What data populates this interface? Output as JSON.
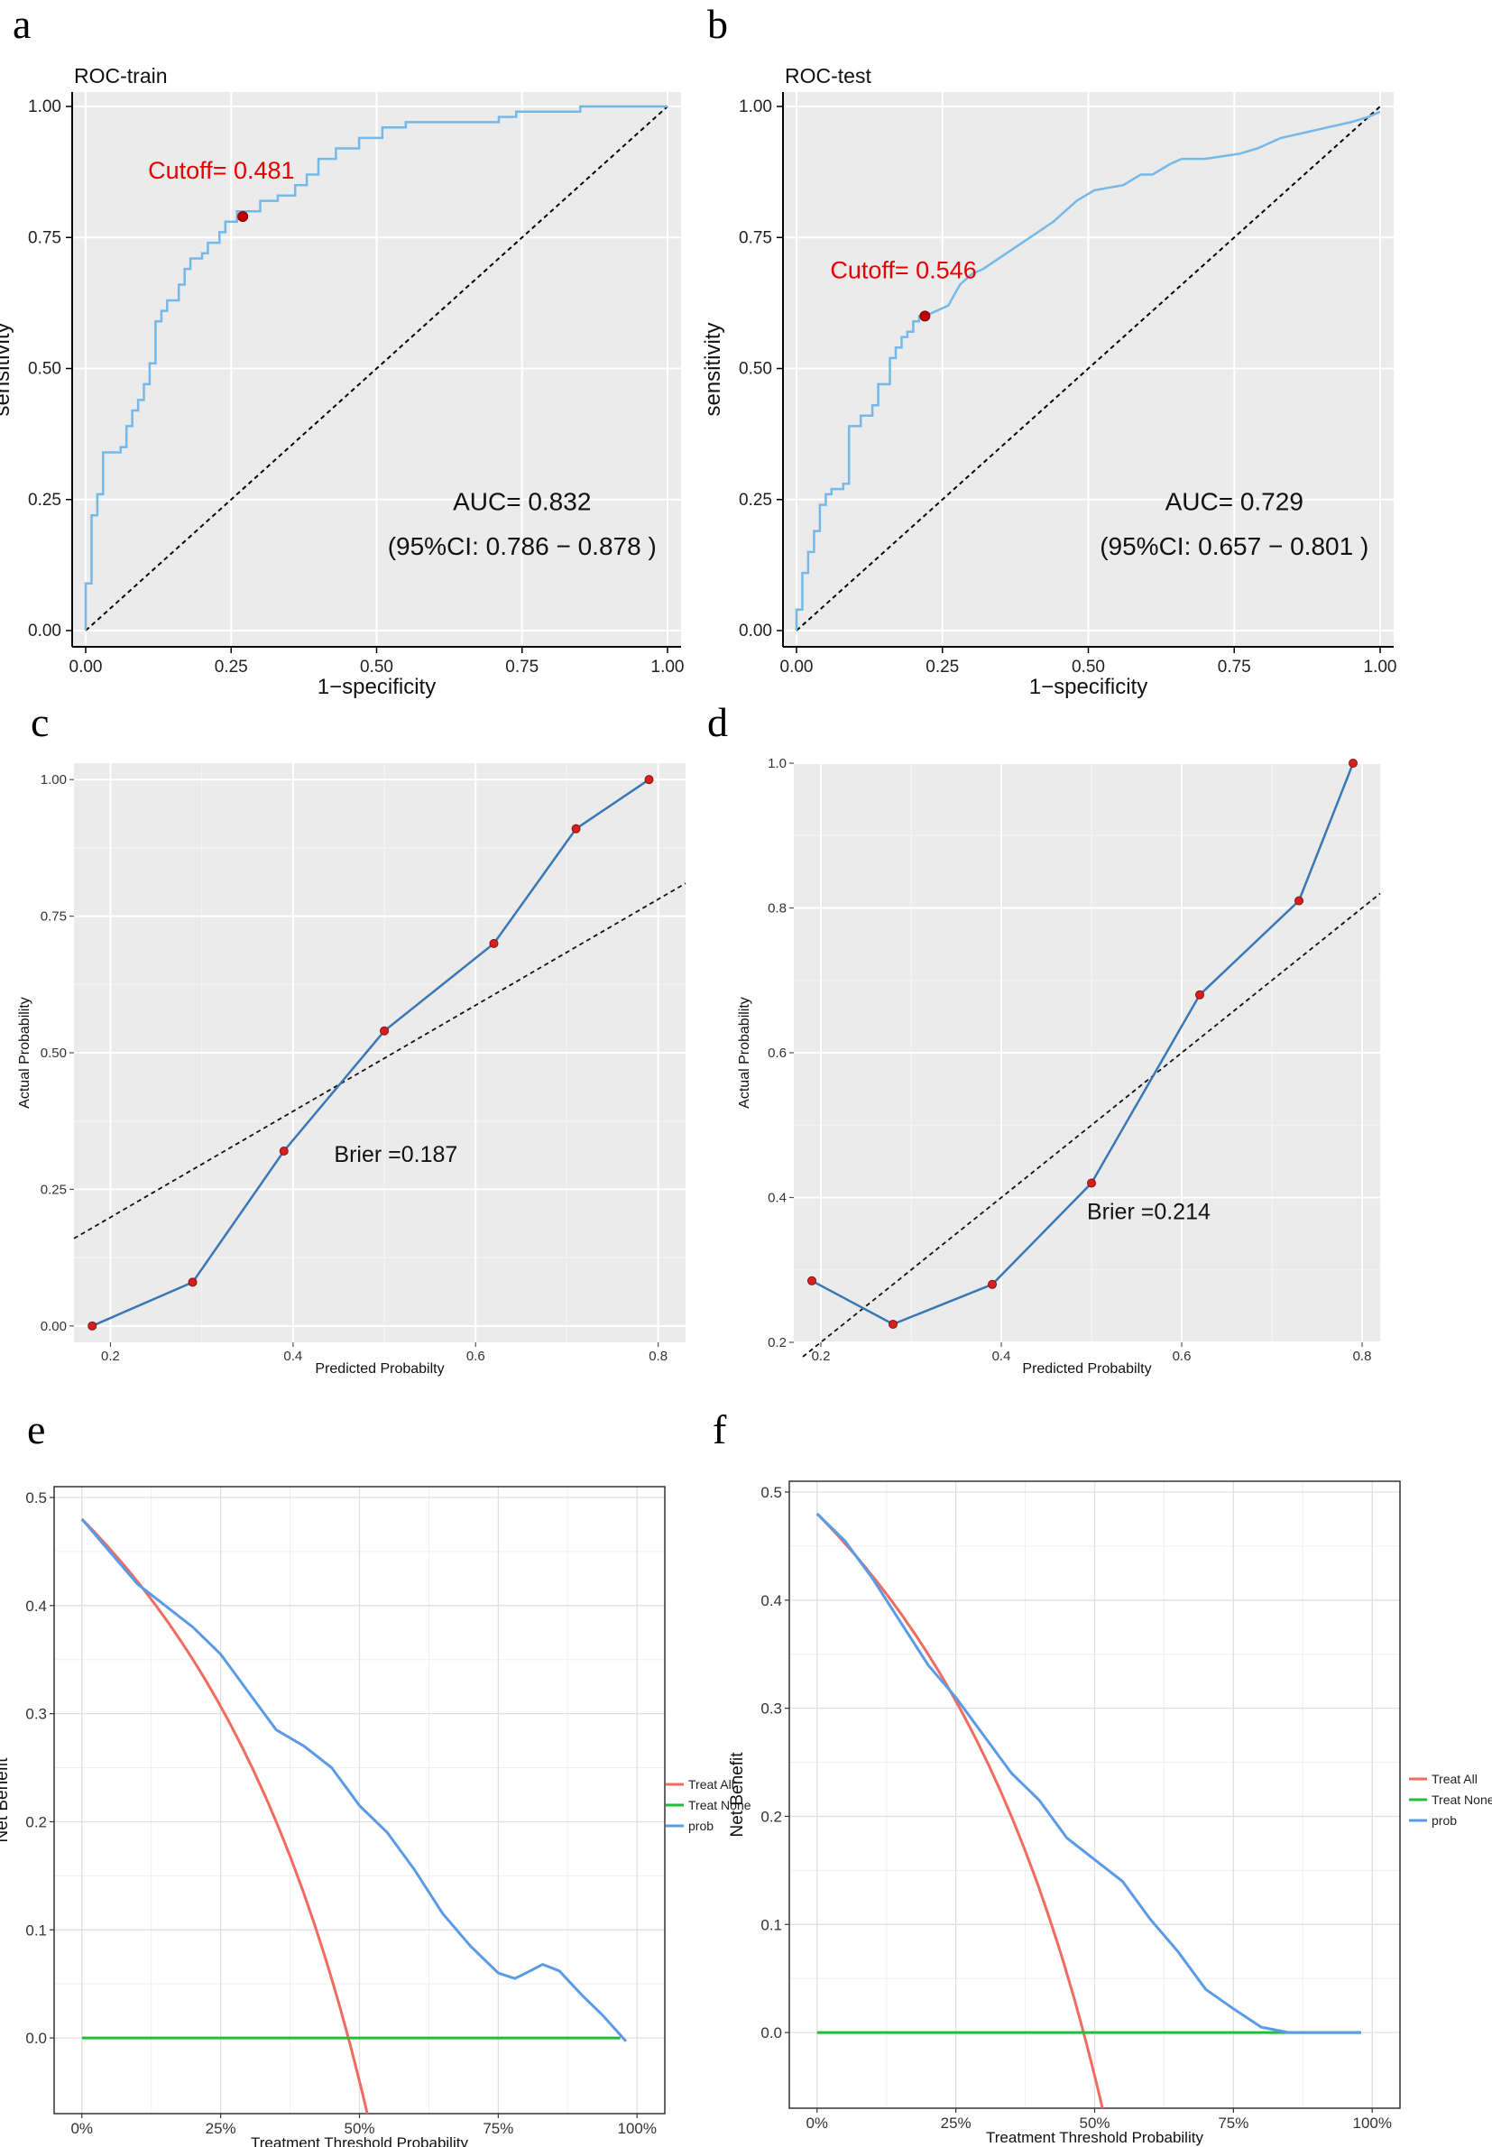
{
  "panel_labels": [
    "a",
    "b",
    "c",
    "d",
    "e",
    "f"
  ],
  "colors": {
    "roc_curve": "#74b9e8",
    "cutoff": "#e60000",
    "cutoff_point": "#c00000",
    "calib_line": "#3a78b5",
    "calib_point": "#d62020",
    "treat_all": "#f26b5f",
    "treat_none": "#1fbf3a",
    "prob": "#5b9be6",
    "panel_bg": "#ebebeb"
  },
  "chart_data": [
    {
      "id": "a",
      "type": "line",
      "title": "ROC-train",
      "xlabel": "1−specificity",
      "ylabel": "sensitivity",
      "xlim": [
        0,
        1
      ],
      "ylim": [
        0,
        1
      ],
      "xticks": [
        "0.00",
        "0.25",
        "0.50",
        "0.75",
        "1.00"
      ],
      "yticks": [
        "0.00",
        "0.25",
        "0.50",
        "0.75",
        "1.00"
      ],
      "grid": true,
      "cutoff_label": "Cutoff= 0.481",
      "cutoff_point": [
        0.27,
        0.79
      ],
      "auc_label": "AUC= 0.832",
      "ci_label": "(95%CI: 0.786 − 0.878 )",
      "series": [
        {
          "name": "ROC",
          "x": [
            0,
            0,
            0.01,
            0.01,
            0.02,
            0.02,
            0.03,
            0.03,
            0.06,
            0.06,
            0.07,
            0.07,
            0.08,
            0.08,
            0.09,
            0.09,
            0.1,
            0.1,
            0.11,
            0.11,
            0.12,
            0.12,
            0.13,
            0.13,
            0.14,
            0.14,
            0.16,
            0.16,
            0.17,
            0.17,
            0.18,
            0.18,
            0.2,
            0.2,
            0.21,
            0.21,
            0.23,
            0.23,
            0.24,
            0.24,
            0.26,
            0.26,
            0.3,
            0.3,
            0.33,
            0.33,
            0.36,
            0.36,
            0.38,
            0.38,
            0.4,
            0.4,
            0.43,
            0.43,
            0.47,
            0.47,
            0.51,
            0.51,
            0.55,
            0.55,
            0.63,
            0.63,
            0.71,
            0.71,
            0.74,
            0.74,
            0.77,
            0.77,
            0.85,
            0.85,
            0.88,
            0.88,
            0.93,
            0.93,
            1.0
          ],
          "y": [
            0,
            0.09,
            0.09,
            0.22,
            0.22,
            0.26,
            0.26,
            0.34,
            0.34,
            0.35,
            0.35,
            0.39,
            0.39,
            0.42,
            0.42,
            0.44,
            0.44,
            0.47,
            0.47,
            0.51,
            0.51,
            0.59,
            0.59,
            0.61,
            0.61,
            0.63,
            0.63,
            0.66,
            0.66,
            0.69,
            0.69,
            0.71,
            0.71,
            0.72,
            0.72,
            0.74,
            0.74,
            0.76,
            0.76,
            0.78,
            0.78,
            0.8,
            0.8,
            0.82,
            0.82,
            0.83,
            0.83,
            0.85,
            0.85,
            0.87,
            0.87,
            0.9,
            0.9,
            0.92,
            0.92,
            0.94,
            0.94,
            0.96,
            0.96,
            0.97,
            0.97,
            0.97,
            0.97,
            0.98,
            0.98,
            0.99,
            0.99,
            0.99,
            0.99,
            1.0,
            1.0,
            1.0,
            1.0,
            1.0,
            1.0
          ]
        },
        {
          "name": "reference",
          "x": [
            0,
            1
          ],
          "y": [
            0,
            1
          ]
        }
      ]
    },
    {
      "id": "b",
      "type": "line",
      "title": "ROC-test",
      "xlabel": "1−specificity",
      "ylabel": "sensitivity",
      "xlim": [
        0,
        1
      ],
      "ylim": [
        0,
        1
      ],
      "xticks": [
        "0.00",
        "0.25",
        "0.50",
        "0.75",
        "1.00"
      ],
      "yticks": [
        "0.00",
        "0.25",
        "0.50",
        "0.75",
        "1.00"
      ],
      "grid": true,
      "cutoff_label": "Cutoff= 0.546",
      "cutoff_point": [
        0.22,
        0.6
      ],
      "auc_label": "AUC= 0.729",
      "ci_label": "(95%CI: 0.657 − 0.801 )",
      "series": [
        {
          "name": "ROC",
          "x": [
            0,
            0,
            0.01,
            0.01,
            0.02,
            0.02,
            0.03,
            0.03,
            0.04,
            0.04,
            0.05,
            0.05,
            0.06,
            0.06,
            0.08,
            0.08,
            0.09,
            0.09,
            0.11,
            0.11,
            0.13,
            0.13,
            0.14,
            0.14,
            0.16,
            0.16,
            0.17,
            0.17,
            0.18,
            0.18,
            0.19,
            0.19,
            0.2,
            0.2,
            0.21,
            0.21,
            0.22,
            0.26,
            0.28,
            0.3,
            0.32,
            0.36,
            0.4,
            0.44,
            0.48,
            0.51,
            0.56,
            0.59,
            0.61,
            0.64,
            0.66,
            0.7,
            0.76,
            0.79,
            0.83,
            0.87,
            0.91,
            0.95,
            0.98,
            1.0
          ],
          "y": [
            0,
            0.04,
            0.04,
            0.11,
            0.11,
            0.15,
            0.15,
            0.19,
            0.19,
            0.24,
            0.24,
            0.26,
            0.26,
            0.27,
            0.27,
            0.28,
            0.28,
            0.39,
            0.39,
            0.41,
            0.41,
            0.43,
            0.43,
            0.47,
            0.47,
            0.52,
            0.52,
            0.54,
            0.54,
            0.56,
            0.56,
            0.57,
            0.57,
            0.59,
            0.59,
            0.6,
            0.6,
            0.62,
            0.66,
            0.68,
            0.69,
            0.72,
            0.75,
            0.78,
            0.82,
            0.84,
            0.85,
            0.87,
            0.87,
            0.89,
            0.9,
            0.9,
            0.91,
            0.92,
            0.94,
            0.95,
            0.96,
            0.97,
            0.98,
            0.99
          ]
        },
        {
          "name": "reference",
          "x": [
            0,
            1
          ],
          "y": [
            0,
            1
          ]
        }
      ]
    },
    {
      "id": "c",
      "type": "line",
      "xlabel": "Predicted Probabilty",
      "ylabel": "Actual Probability",
      "xlim": [
        0.16,
        0.83
      ],
      "ylim": [
        -0.03,
        1.03
      ],
      "xticks": [
        {
          "v": 0.2,
          "t": "0.2"
        },
        {
          "v": 0.4,
          "t": "0.4"
        },
        {
          "v": 0.6,
          "t": "0.6"
        },
        {
          "v": 0.8,
          "t": "0.8"
        }
      ],
      "yticks": [
        {
          "v": 0,
          "t": "0.00"
        },
        {
          "v": 0.25,
          "t": "0.25"
        },
        {
          "v": 0.5,
          "t": "0.50"
        },
        {
          "v": 0.75,
          "t": "0.75"
        },
        {
          "v": 1.0,
          "t": "1.00"
        }
      ],
      "grid": true,
      "brier_label": "Brier =0.187",
      "series": [
        {
          "name": "calibration",
          "x": [
            0.18,
            0.29,
            0.39,
            0.5,
            0.62,
            0.71,
            0.79
          ],
          "y": [
            0.0,
            0.08,
            0.32,
            0.54,
            0.7,
            0.91,
            1.0
          ]
        },
        {
          "name": "ideal",
          "x": [
            0.16,
            0.83
          ],
          "y": [
            0.16,
            0.81
          ]
        }
      ]
    },
    {
      "id": "d",
      "type": "line",
      "xlabel": "Predicted Probabilty",
      "ylabel": "Actual Probability",
      "xlim": [
        0.17,
        0.82
      ],
      "ylim": [
        0.2,
        1.0
      ],
      "xticks": [
        {
          "v": 0.2,
          "t": "0.2"
        },
        {
          "v": 0.4,
          "t": "0.4"
        },
        {
          "v": 0.6,
          "t": "0.6"
        },
        {
          "v": 0.8,
          "t": "0.8"
        }
      ],
      "yticks": [
        {
          "v": 0.2,
          "t": "0.2"
        },
        {
          "v": 0.4,
          "t": "0.4"
        },
        {
          "v": 0.6,
          "t": "0.6"
        },
        {
          "v": 0.8,
          "t": "0.8"
        },
        {
          "v": 1.0,
          "t": "1.0"
        }
      ],
      "grid": true,
      "brier_label": "Brier =0.214",
      "series": [
        {
          "name": "calibration",
          "x": [
            0.19,
            0.28,
            0.39,
            0.5,
            0.62,
            0.73,
            0.79
          ],
          "y": [
            0.285,
            0.225,
            0.28,
            0.42,
            0.68,
            0.81,
            1.0
          ]
        },
        {
          "name": "ideal",
          "x": [
            0.18,
            0.82
          ],
          "y": [
            0.18,
            0.82
          ]
        }
      ]
    },
    {
      "id": "e",
      "type": "line",
      "xlabel": "Treatment Threshold Probability",
      "ylabel": "Net Benefit",
      "xlim": [
        -0.05,
        1.05
      ],
      "ylim": [
        -0.07,
        0.51
      ],
      "xticks": [
        {
          "v": 0,
          "t": "0%"
        },
        {
          "v": 0.25,
          "t": "25%"
        },
        {
          "v": 0.5,
          "t": "50%"
        },
        {
          "v": 0.75,
          "t": "75%"
        },
        {
          "v": 1.0,
          "t": "100%"
        }
      ],
      "yticks": [
        {
          "v": 0,
          "t": "0.0"
        },
        {
          "v": 0.1,
          "t": "0.1"
        },
        {
          "v": 0.2,
          "t": "0.2"
        },
        {
          "v": 0.3,
          "t": "0.3"
        },
        {
          "v": 0.4,
          "t": "0.4"
        },
        {
          "v": 0.5,
          "t": "0.5"
        }
      ],
      "grid": true,
      "legend": [
        "Treat All",
        "Treat None",
        "prob"
      ],
      "legend_position": "right",
      "prevalence": 0.48,
      "series": [
        {
          "name": "Treat All",
          "formula": "p - (1-p)*t/(1-t)"
        },
        {
          "name": "Treat None",
          "x": [
            0,
            0.97
          ],
          "y": [
            0,
            0
          ]
        },
        {
          "name": "prob",
          "x": [
            0,
            0.05,
            0.1,
            0.15,
            0.2,
            0.25,
            0.3,
            0.35,
            0.4,
            0.45,
            0.5,
            0.55,
            0.6,
            0.65,
            0.7,
            0.75,
            0.78,
            0.8,
            0.83,
            0.86,
            0.9,
            0.94,
            0.98
          ],
          "y": [
            0.48,
            0.45,
            0.42,
            0.4,
            0.38,
            0.355,
            0.32,
            0.285,
            0.27,
            0.25,
            0.215,
            0.19,
            0.155,
            0.115,
            0.085,
            0.06,
            0.055,
            0.06,
            0.068,
            0.062,
            0.04,
            0.02,
            -0.003
          ]
        }
      ]
    },
    {
      "id": "f",
      "type": "line",
      "xlabel": "Treatment Threshold Probability",
      "ylabel": "Net Benefit",
      "xlim": [
        -0.05,
        1.05
      ],
      "ylim": [
        -0.07,
        0.51
      ],
      "xticks": [
        {
          "v": 0,
          "t": "0%"
        },
        {
          "v": 0.25,
          "t": "25%"
        },
        {
          "v": 0.5,
          "t": "50%"
        },
        {
          "v": 0.75,
          "t": "75%"
        },
        {
          "v": 1.0,
          "t": "100%"
        }
      ],
      "yticks": [
        {
          "v": 0,
          "t": "0.0"
        },
        {
          "v": 0.1,
          "t": "0.1"
        },
        {
          "v": 0.2,
          "t": "0.2"
        },
        {
          "v": 0.3,
          "t": "0.3"
        },
        {
          "v": 0.4,
          "t": "0.4"
        },
        {
          "v": 0.5,
          "t": "0.5"
        }
      ],
      "grid": true,
      "legend": [
        "Treat All",
        "Treat None",
        "prob"
      ],
      "legend_position": "right",
      "prevalence": 0.48,
      "series": [
        {
          "name": "Treat All",
          "formula": "p - (1-p)*t/(1-t)"
        },
        {
          "name": "Treat None",
          "x": [
            0,
            0.98
          ],
          "y": [
            0,
            0
          ]
        },
        {
          "name": "prob",
          "x": [
            0,
            0.05,
            0.1,
            0.15,
            0.2,
            0.25,
            0.3,
            0.35,
            0.4,
            0.45,
            0.5,
            0.55,
            0.6,
            0.65,
            0.7,
            0.75,
            0.8,
            0.85,
            0.9,
            0.98
          ],
          "y": [
            0.48,
            0.455,
            0.42,
            0.38,
            0.34,
            0.31,
            0.275,
            0.24,
            0.215,
            0.18,
            0.16,
            0.14,
            0.105,
            0.075,
            0.04,
            0.022,
            0.005,
            0.0,
            0.0,
            0.0
          ]
        }
      ]
    }
  ]
}
